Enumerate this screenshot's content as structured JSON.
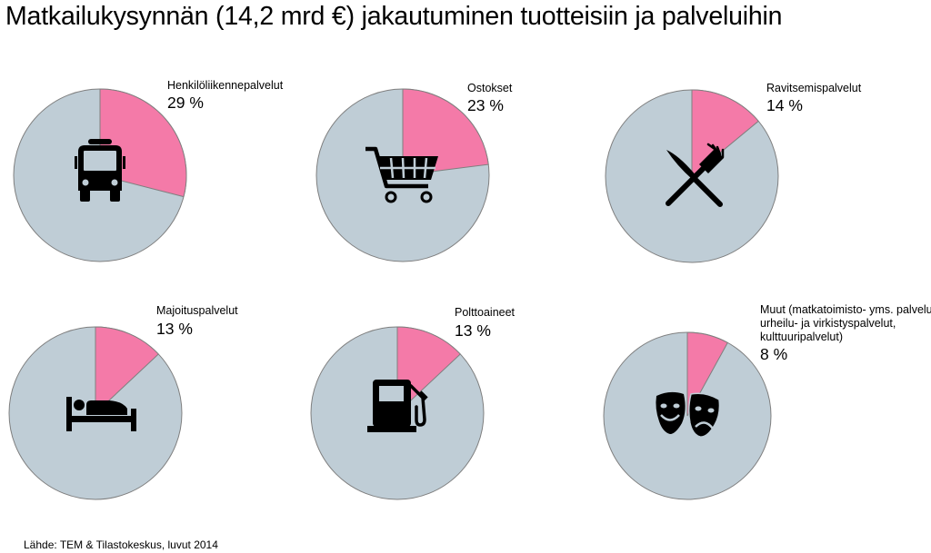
{
  "title": "Matkailukysynnän (14,2 mrd €) jakautuminen tuotteisiin ja palveluihin",
  "source": "Lähde: TEM & Tilastokeskus, luvut 2014",
  "colors": {
    "share": "#f47aa8",
    "rest": "#bfcdd6",
    "stroke": "#7f7f7f",
    "icon": "#000000"
  },
  "chart_data": [
    {
      "type": "pie",
      "label": "Henkilöliikennepalvelut",
      "value_label": "29 %",
      "values": [
        29,
        71
      ],
      "icon": "bus-icon"
    },
    {
      "type": "pie",
      "label": "Ostokset",
      "value_label": "23 %",
      "values": [
        23,
        77
      ],
      "icon": "shopping-cart-icon"
    },
    {
      "type": "pie",
      "label": "Ravitsemispalvelut",
      "value_label": "14 %",
      "values": [
        14,
        86
      ],
      "icon": "knife-fork-icon"
    },
    {
      "type": "pie",
      "label": "Majoituspalvelut",
      "value_label": "13 %",
      "values": [
        13,
        87
      ],
      "icon": "bed-icon"
    },
    {
      "type": "pie",
      "label": "Polttoaineet",
      "value_label": "13 %",
      "values": [
        13,
        87
      ],
      "icon": "fuel-pump-icon"
    },
    {
      "type": "pie",
      "label_lines": [
        "Muut (matkatoimisto- yms. palvelut,",
        "urheilu- ja virkistyspalvelut,",
        "kulttuuripalvelut)"
      ],
      "value_label": "8 %",
      "values": [
        8,
        92
      ],
      "icon": "theater-masks-icon"
    }
  ]
}
